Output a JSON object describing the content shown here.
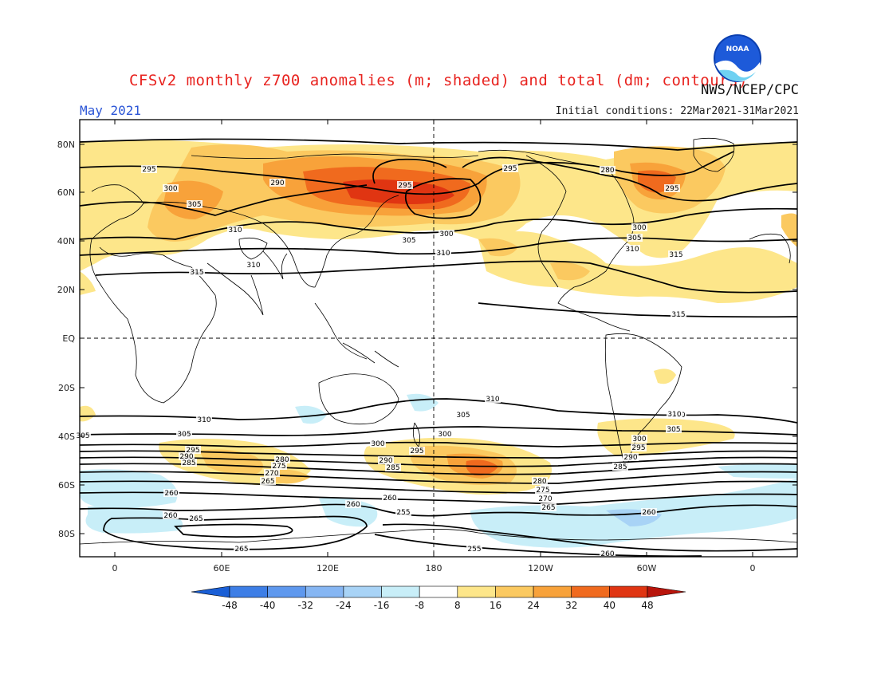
{
  "header": {
    "title": "CFSv2 monthly z700 anomalies (m; shaded) and total (dm; contours)",
    "agency": "NWS/NCEP/CPC",
    "month": "May 2021",
    "initial_conditions": "Initial conditions: 22Mar2021-31Mar2021",
    "logo_text": "NOAA"
  },
  "axes": {
    "lat_labels": [
      "80N",
      "60N",
      "40N",
      "20N",
      "EQ",
      "20S",
      "40S",
      "60S",
      "80S"
    ],
    "lon_labels": [
      "0",
      "60E",
      "120E",
      "180",
      "120W",
      "60W",
      "0"
    ]
  },
  "colorbar": {
    "ticks": [
      "-48",
      "-40",
      "-32",
      "-24",
      "-16",
      "-8",
      "8",
      "16",
      "24",
      "32",
      "40",
      "48"
    ],
    "colors": [
      "#1a5fd6",
      "#3d7ee6",
      "#5e98ee",
      "#86b6f3",
      "#a8d3f6",
      "#c8eef8",
      "#ffffff",
      "#fde68a",
      "#fbc960",
      "#f8a23a",
      "#f06a1e",
      "#e03512",
      "#b8150c"
    ]
  },
  "contour_labels": [
    {
      "text": "295"
    },
    {
      "text": "300"
    },
    {
      "text": "305"
    },
    {
      "text": "310"
    },
    {
      "text": "290"
    },
    {
      "text": "295"
    },
    {
      "text": "305"
    },
    {
      "text": "300"
    },
    {
      "text": "310"
    },
    {
      "text": "310"
    },
    {
      "text": "315"
    },
    {
      "text": "295"
    },
    {
      "text": "280"
    },
    {
      "text": "295"
    },
    {
      "text": "300"
    },
    {
      "text": "305"
    },
    {
      "text": "310"
    },
    {
      "text": "315"
    },
    {
      "text": "315"
    },
    {
      "text": "310"
    },
    {
      "text": "305"
    },
    {
      "text": "310"
    },
    {
      "text": "305"
    },
    {
      "text": "300"
    },
    {
      "text": "295"
    },
    {
      "text": "290"
    },
    {
      "text": "285"
    },
    {
      "text": "310"
    },
    {
      "text": "305"
    },
    {
      "text": "295"
    },
    {
      "text": "290"
    },
    {
      "text": "285"
    },
    {
      "text": "280"
    },
    {
      "text": "275"
    },
    {
      "text": "270"
    },
    {
      "text": "265"
    },
    {
      "text": "280"
    },
    {
      "text": "275"
    },
    {
      "text": "270"
    },
    {
      "text": "265"
    },
    {
      "text": "260"
    },
    {
      "text": "260"
    },
    {
      "text": "260"
    },
    {
      "text": "260"
    },
    {
      "text": "255"
    },
    {
      "text": "265"
    },
    {
      "text": "255"
    },
    {
      "text": "265"
    },
    {
      "text": "260"
    },
    {
      "text": "300"
    },
    {
      "text": "295"
    },
    {
      "text": "290"
    },
    {
      "text": "285"
    },
    {
      "text": "305"
    },
    {
      "text": "310"
    },
    {
      "text": "300"
    },
    {
      "text": "260"
    }
  ]
}
